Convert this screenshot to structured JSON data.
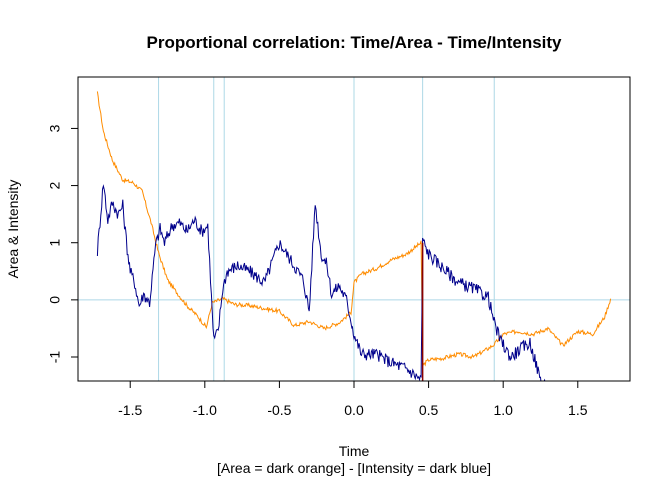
{
  "chart_data": {
    "type": "line",
    "title": "Proportional correlation: Time/Area - Time/Intensity",
    "xlabel": "Time",
    "subtitle": "[Area = dark orange] - [Intensity = dark blue]",
    "ylabel": "Area & Intensity",
    "xlim": [
      -1.85,
      1.85
    ],
    "ylim": [
      -1.42,
      3.9
    ],
    "x_ticks": [
      -1.5,
      -1.0,
      -0.5,
      0.0,
      0.5,
      1.0,
      1.5
    ],
    "x_tick_labels": [
      "-1.5",
      "-1.0",
      "-0.5",
      "0.0",
      "0.5",
      "1.0",
      "1.5"
    ],
    "y_ticks": [
      -1,
      0,
      1,
      2,
      3
    ],
    "y_tick_labels": [
      "-1",
      "0",
      "1",
      "2",
      "3"
    ],
    "reference_lines": {
      "vertical": [
        -1.31,
        -0.94,
        -0.87,
        0.0,
        0.46,
        0.94
      ],
      "horizontal": [
        0
      ],
      "color": "#add8e6"
    },
    "colors": {
      "area": "#ff8c00",
      "intensity": "#00008b",
      "marker": "#8b0000"
    },
    "marker_x": 0.46,
    "series": [
      {
        "x": [
          -1.72,
          -1.68,
          -1.62,
          -1.55,
          -1.48,
          -1.42,
          -1.36,
          -1.31,
          -1.25,
          -1.18,
          -1.12,
          -1.05,
          -0.99,
          -0.95,
          -0.92,
          -0.88,
          -0.8,
          -0.7,
          -0.6,
          -0.5,
          -0.4,
          -0.3,
          -0.2,
          -0.1,
          -0.02,
          0.0,
          0.05,
          0.15,
          0.25,
          0.35,
          0.45,
          0.46,
          0.5,
          0.6,
          0.7,
          0.8,
          0.9,
          0.94,
          1.0,
          1.1,
          1.2,
          1.3,
          1.4,
          1.5,
          1.6,
          1.68,
          1.72
        ],
        "y": [
          3.62,
          2.95,
          2.45,
          2.1,
          2.05,
          1.9,
          1.35,
          0.82,
          0.35,
          0.1,
          -0.1,
          -0.28,
          -0.48,
          -0.05,
          -0.02,
          0.02,
          -0.08,
          -0.1,
          -0.15,
          -0.2,
          -0.45,
          -0.38,
          -0.5,
          -0.4,
          -0.22,
          0.3,
          0.45,
          0.55,
          0.7,
          0.8,
          1.0,
          -1.15,
          -1.05,
          -1.02,
          -0.95,
          -1.0,
          -0.85,
          -0.78,
          -0.6,
          -0.55,
          -0.6,
          -0.5,
          -0.8,
          -0.55,
          -0.6,
          -0.3,
          0.02
        ]
      },
      {
        "x": [
          -1.72,
          -1.68,
          -1.65,
          -1.62,
          -1.58,
          -1.55,
          -1.52,
          -1.5,
          -1.47,
          -1.44,
          -1.41,
          -1.37,
          -1.33,
          -1.3,
          -1.27,
          -1.22,
          -1.17,
          -1.12,
          -1.07,
          -1.02,
          -0.98,
          -0.95,
          -0.94,
          -0.91,
          -0.88,
          -0.85,
          -0.78,
          -0.7,
          -0.6,
          -0.5,
          -0.4,
          -0.34,
          -0.3,
          -0.26,
          -0.22,
          -0.18,
          -0.15,
          -0.1,
          -0.05,
          -0.02,
          0.0,
          0.05,
          0.15,
          0.25,
          0.35,
          0.45,
          0.46,
          0.5,
          0.6,
          0.7,
          0.8,
          0.9,
          0.94,
          0.98,
          1.05,
          1.12,
          1.18,
          1.25,
          1.3
        ],
        "y": [
          0.85,
          2.05,
          1.4,
          1.7,
          1.5,
          1.65,
          0.9,
          0.5,
          0.3,
          -0.1,
          0.1,
          -0.05,
          0.95,
          1.25,
          1.0,
          1.3,
          1.35,
          1.2,
          1.4,
          1.2,
          1.3,
          -0.25,
          -0.7,
          -0.55,
          0.2,
          0.5,
          0.6,
          0.5,
          0.3,
          1.0,
          0.6,
          0.35,
          -0.2,
          1.7,
          0.8,
          0.6,
          0.1,
          0.25,
          0.0,
          -0.35,
          -0.6,
          -0.95,
          -0.95,
          -1.1,
          -1.2,
          -1.4,
          1.05,
          0.8,
          0.55,
          0.3,
          0.2,
          0.05,
          -0.4,
          -0.7,
          -1.0,
          -0.85,
          -0.75,
          -1.4,
          -1.5
        ]
      }
    ]
  }
}
